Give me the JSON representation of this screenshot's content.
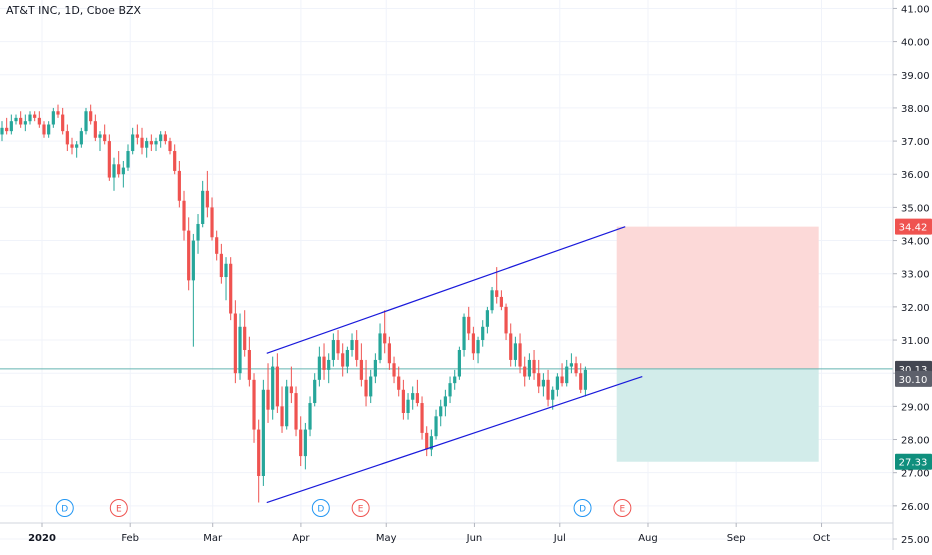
{
  "header": {
    "title": "AT&T INC, 1D, Cboe BZX"
  },
  "colors": {
    "up": "#26a69a",
    "down": "#ef5350",
    "grid": "#f0f3fa",
    "channel": "#1a1adb",
    "stop_zone": "#fcd9d8",
    "target_zone": "#d2ecea",
    "last_price_line": "#64b5b0",
    "badge_red": "#ef5350",
    "badge_blue": "#434651",
    "badge_green": "#0f8f7d",
    "event_d": "#2196f3",
    "event_e": "#ef5350"
  },
  "chart_data": {
    "type": "candlestick",
    "y_range": [
      25,
      41
    ],
    "y_ticks": [
      "25.00",
      "26.00",
      "27.00",
      "28.00",
      "29.00",
      "30.00",
      "31.00",
      "32.00",
      "33.00",
      "34.00",
      "35.00",
      "36.00",
      "37.00",
      "38.00",
      "39.00",
      "40.00",
      "41.00"
    ],
    "x_labels": [
      "2020",
      "Feb",
      "Mar",
      "Apr",
      "May",
      "Jun",
      "Jul",
      "Aug",
      "Sep",
      "Oct"
    ],
    "last_price": "30.10",
    "price_badges": [
      {
        "label": "34.42",
        "value": 34.42,
        "color": "badge_red"
      },
      {
        "label": "30.13",
        "value": 30.13,
        "color": "badge_blue"
      },
      {
        "label": "30.10",
        "value": 30.1,
        "color": "badge_blue_light"
      },
      {
        "label": "27.33",
        "value": 27.33,
        "color": "badge_green"
      }
    ],
    "position_tool": {
      "entry": 30.13,
      "stop": 34.42,
      "target": 27.33
    },
    "channel": {
      "upper": [
        {
          "date": "2020-03-20",
          "price": 30.6
        },
        {
          "date": "2020-07-24",
          "price": 34.42
        }
      ],
      "lower": [
        {
          "date": "2020-03-20",
          "price": 26.1
        },
        {
          "date": "2020-07-30",
          "price": 29.9
        }
      ]
    },
    "events": [
      "D",
      "E",
      "D",
      "E",
      "D",
      "E"
    ],
    "candles": [
      [
        37.2,
        37.6,
        37.0,
        37.4
      ],
      [
        37.4,
        37.7,
        37.2,
        37.3
      ],
      [
        37.3,
        37.8,
        37.2,
        37.6
      ],
      [
        37.6,
        37.8,
        37.5,
        37.7
      ],
      [
        37.7,
        37.9,
        37.4,
        37.5
      ],
      [
        37.5,
        37.8,
        37.3,
        37.6
      ],
      [
        37.6,
        37.9,
        37.5,
        37.8
      ],
      [
        37.8,
        37.9,
        37.6,
        37.7
      ],
      [
        37.7,
        37.9,
        37.4,
        37.5
      ],
      [
        37.5,
        37.6,
        37.1,
        37.2
      ],
      [
        37.2,
        37.6,
        37.1,
        37.5
      ],
      [
        37.5,
        38.0,
        37.4,
        37.9
      ],
      [
        37.9,
        38.1,
        37.7,
        37.8
      ],
      [
        37.8,
        38.0,
        37.2,
        37.3
      ],
      [
        37.3,
        37.5,
        36.7,
        36.9
      ],
      [
        36.9,
        37.1,
        36.6,
        36.8
      ],
      [
        36.8,
        37.0,
        36.5,
        36.9
      ],
      [
        36.9,
        37.4,
        36.8,
        37.3
      ],
      [
        37.3,
        38.0,
        37.2,
        37.9
      ],
      [
        37.9,
        38.1,
        37.5,
        37.6
      ],
      [
        37.6,
        37.8,
        37.0,
        37.1
      ],
      [
        37.1,
        37.3,
        36.7,
        37.2
      ],
      [
        37.2,
        37.5,
        36.9,
        37.0
      ],
      [
        37.0,
        37.2,
        35.8,
        35.9
      ],
      [
        35.9,
        36.5,
        35.5,
        36.3
      ],
      [
        36.3,
        36.7,
        35.9,
        36.0
      ],
      [
        36.0,
        36.4,
        35.6,
        36.2
      ],
      [
        36.2,
        36.9,
        36.1,
        36.7
      ],
      [
        36.7,
        37.4,
        36.6,
        37.2
      ],
      [
        37.2,
        37.5,
        36.9,
        37.1
      ],
      [
        37.1,
        37.4,
        36.6,
        36.8
      ],
      [
        36.8,
        37.1,
        36.5,
        37.0
      ],
      [
        37.0,
        37.2,
        36.7,
        36.9
      ],
      [
        36.9,
        37.1,
        36.7,
        37.0
      ],
      [
        37.0,
        37.3,
        36.8,
        37.2
      ],
      [
        37.2,
        37.3,
        36.9,
        37.0
      ],
      [
        37.0,
        37.1,
        36.6,
        36.7
      ],
      [
        36.7,
        36.9,
        36.0,
        36.1
      ],
      [
        36.1,
        36.4,
        35.0,
        35.2
      ],
      [
        35.2,
        35.5,
        34.0,
        34.3
      ],
      [
        34.3,
        34.7,
        32.5,
        32.8
      ],
      [
        32.8,
        34.2,
        30.8,
        34.0
      ],
      [
        34.0,
        34.8,
        33.6,
        34.5
      ],
      [
        34.5,
        35.8,
        34.4,
        35.5
      ],
      [
        35.5,
        36.1,
        34.7,
        35.0
      ],
      [
        35.0,
        35.3,
        34.0,
        34.1
      ],
      [
        34.1,
        34.3,
        33.4,
        33.6
      ],
      [
        33.6,
        33.9,
        32.7,
        32.9
      ],
      [
        32.9,
        33.5,
        32.2,
        33.3
      ],
      [
        33.3,
        33.5,
        31.6,
        31.8
      ],
      [
        31.8,
        32.2,
        29.7,
        30.0
      ],
      [
        30.0,
        31.8,
        29.8,
        31.4
      ],
      [
        31.4,
        31.9,
        30.5,
        30.7
      ],
      [
        30.7,
        31.1,
        29.6,
        29.8
      ],
      [
        29.8,
        30.0,
        27.9,
        28.3
      ],
      [
        28.3,
        28.6,
        26.1,
        26.9
      ],
      [
        26.9,
        29.8,
        26.6,
        29.5
      ],
      [
        29.5,
        30.3,
        28.5,
        28.9
      ],
      [
        28.9,
        30.5,
        28.6,
        30.2
      ],
      [
        30.2,
        30.6,
        28.8,
        29.0
      ],
      [
        29.0,
        29.6,
        28.2,
        28.4
      ],
      [
        28.4,
        29.8,
        28.3,
        29.6
      ],
      [
        29.6,
        30.2,
        29.1,
        29.4
      ],
      [
        29.4,
        29.6,
        28.1,
        28.3
      ],
      [
        28.3,
        28.7,
        27.2,
        27.5
      ],
      [
        27.5,
        28.5,
        27.1,
        28.3
      ],
      [
        28.3,
        29.3,
        28.1,
        29.1
      ],
      [
        29.1,
        30.0,
        29.0,
        29.8
      ],
      [
        29.8,
        30.8,
        29.6,
        30.5
      ],
      [
        30.5,
        30.9,
        29.8,
        30.1
      ],
      [
        30.1,
        30.6,
        29.7,
        30.4
      ],
      [
        30.4,
        31.2,
        30.2,
        31.0
      ],
      [
        31.0,
        31.3,
        30.4,
        30.6
      ],
      [
        30.6,
        30.9,
        29.9,
        30.2
      ],
      [
        30.2,
        30.8,
        30.0,
        30.7
      ],
      [
        30.7,
        31.2,
        30.5,
        31.0
      ],
      [
        31.0,
        31.3,
        30.2,
        30.4
      ],
      [
        30.4,
        30.9,
        29.6,
        29.8
      ],
      [
        29.8,
        30.4,
        29.0,
        29.3
      ],
      [
        29.3,
        30.1,
        29.1,
        29.9
      ],
      [
        29.9,
        30.6,
        29.7,
        30.4
      ],
      [
        30.4,
        31.5,
        30.3,
        31.2
      ],
      [
        31.2,
        31.9,
        30.6,
        30.9
      ],
      [
        30.9,
        31.1,
        30.1,
        30.3
      ],
      [
        30.3,
        30.5,
        29.7,
        29.9
      ],
      [
        29.9,
        30.2,
        29.3,
        29.5
      ],
      [
        29.5,
        29.8,
        28.6,
        28.8
      ],
      [
        28.8,
        29.4,
        28.6,
        29.2
      ],
      [
        29.2,
        29.6,
        28.9,
        29.4
      ],
      [
        29.4,
        29.8,
        29.0,
        29.1
      ],
      [
        29.1,
        29.3,
        28.0,
        28.2
      ],
      [
        28.2,
        28.4,
        27.5,
        27.7
      ],
      [
        27.7,
        28.3,
        27.5,
        28.1
      ],
      [
        28.1,
        28.9,
        28.0,
        28.7
      ],
      [
        28.7,
        29.2,
        28.4,
        29.0
      ],
      [
        29.0,
        29.5,
        28.7,
        29.3
      ],
      [
        29.3,
        29.9,
        29.1,
        29.7
      ],
      [
        29.7,
        30.1,
        29.5,
        29.9
      ],
      [
        29.9,
        30.8,
        29.8,
        30.7
      ],
      [
        30.7,
        31.8,
        30.5,
        31.7
      ],
      [
        31.7,
        32.0,
        31.0,
        31.2
      ],
      [
        31.2,
        31.4,
        30.4,
        30.6
      ],
      [
        30.6,
        31.1,
        30.3,
        31.0
      ],
      [
        31.0,
        31.6,
        30.8,
        31.4
      ],
      [
        31.4,
        32.0,
        31.2,
        31.9
      ],
      [
        31.9,
        32.6,
        31.8,
        32.5
      ],
      [
        32.5,
        33.2,
        32.1,
        32.3
      ],
      [
        32.3,
        32.5,
        31.9,
        32.0
      ],
      [
        32.0,
        32.1,
        31.0,
        31.2
      ],
      [
        31.2,
        31.5,
        30.2,
        30.4
      ],
      [
        30.4,
        31.1,
        30.2,
        30.9
      ],
      [
        30.9,
        31.2,
        30.0,
        30.2
      ],
      [
        30.2,
        30.5,
        29.6,
        29.9
      ],
      [
        29.9,
        30.6,
        29.8,
        30.4
      ],
      [
        30.4,
        30.7,
        29.8,
        30.0
      ],
      [
        30.0,
        30.4,
        29.4,
        29.6
      ],
      [
        29.6,
        30.0,
        29.3,
        29.8
      ],
      [
        29.8,
        30.1,
        29.0,
        29.2
      ],
      [
        29.2,
        29.6,
        28.9,
        29.5
      ],
      [
        29.5,
        30.0,
        29.3,
        29.9
      ],
      [
        29.9,
        30.3,
        29.6,
        29.7
      ],
      [
        29.7,
        30.4,
        29.6,
        30.2
      ],
      [
        30.2,
        30.6,
        30.0,
        30.3
      ],
      [
        30.3,
        30.5,
        29.9,
        30.0
      ],
      [
        30.0,
        30.3,
        29.4,
        29.5
      ],
      [
        29.5,
        30.2,
        29.3,
        30.1
      ]
    ]
  }
}
